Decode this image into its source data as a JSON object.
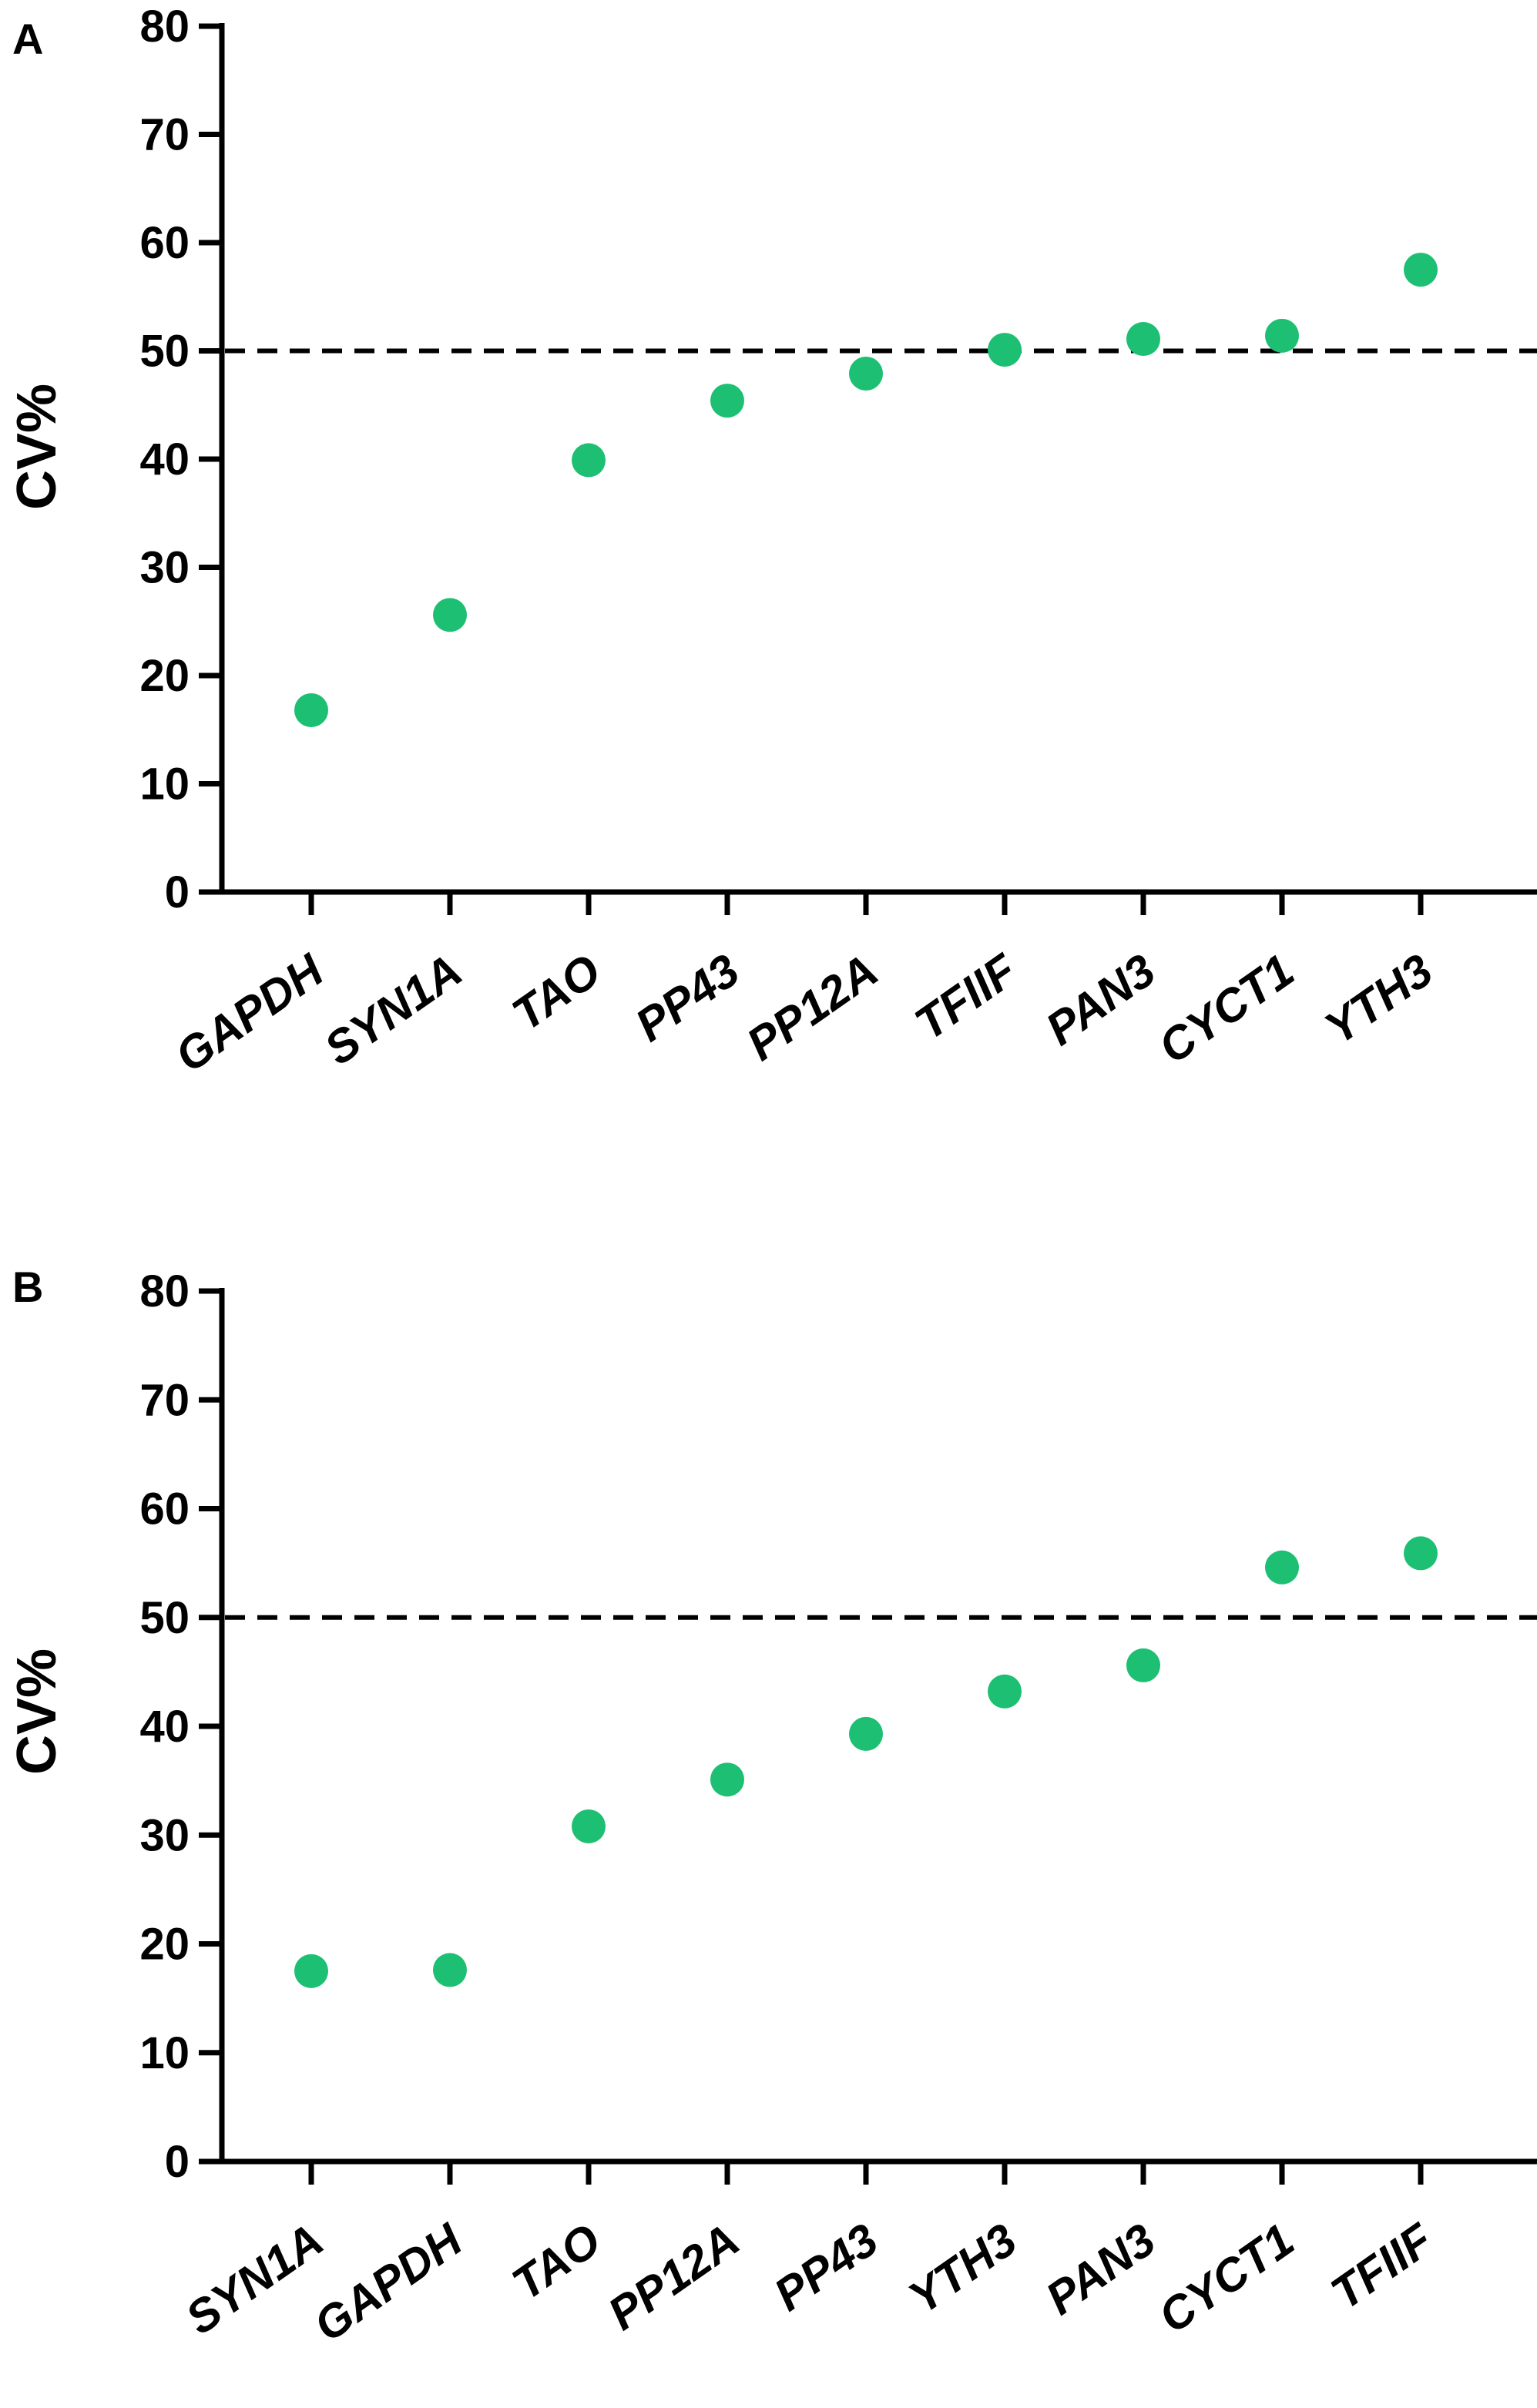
{
  "chart_data": [
    {
      "panel_label": "A",
      "type": "scatter",
      "categories": [
        "GAPDH",
        "SYN1A",
        "TAO",
        "PP43",
        "PP12A",
        "TFIIF",
        "PAN3",
        "CYCT1",
        "YTH3"
      ],
      "values": [
        16.8,
        25.6,
        39.9,
        45.4,
        47.9,
        50.1,
        51.1,
        51.4,
        57.5
      ],
      "ylabel": "CV%",
      "ylim": [
        0,
        80
      ],
      "yticks": [
        "0",
        "10",
        "20",
        "30",
        "40",
        "50",
        "60",
        "70",
        "80"
      ],
      "reference_line": 50,
      "point_color": "#1dbf73",
      "grid": false
    },
    {
      "panel_label": "B",
      "type": "scatter",
      "categories": [
        "SYN1A",
        "GAPDH",
        "TAO",
        "PP12A",
        "PP43",
        "YTH3",
        "PAN3",
        "CYCT1",
        "TFIIF"
      ],
      "values": [
        17.5,
        17.6,
        30.8,
        35.1,
        39.3,
        43.2,
        45.6,
        54.6,
        55.9
      ],
      "ylabel": "CV%",
      "ylim": [
        0,
        80
      ],
      "yticks": [
        "0",
        "10",
        "20",
        "30",
        "40",
        "50",
        "60",
        "70",
        "80"
      ],
      "reference_line": 50,
      "point_color": "#1dbf73",
      "grid": false
    }
  ]
}
